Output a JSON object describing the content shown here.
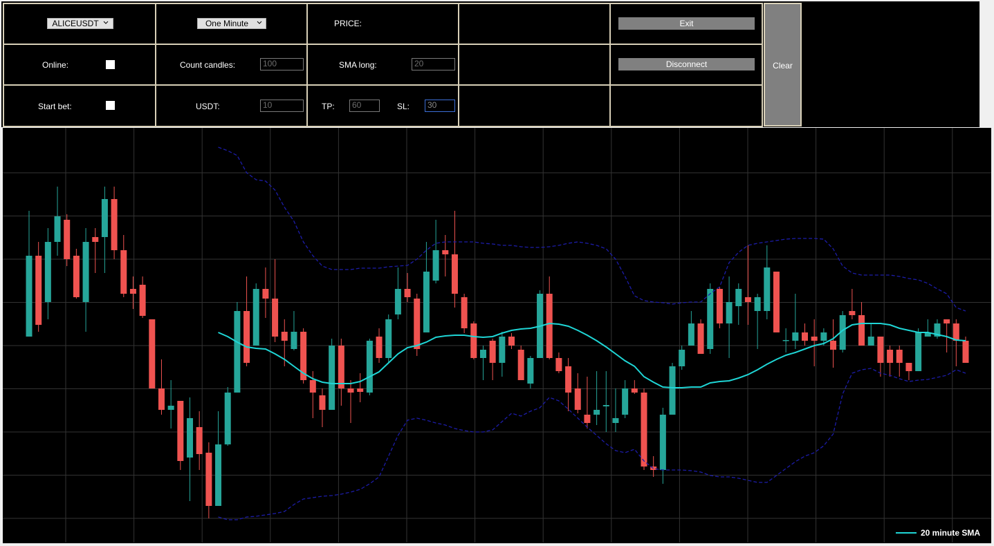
{
  "controls": {
    "symbol": "ALICEUSDT",
    "interval": "One Minute",
    "price_label": "PRICE:",
    "online_label": "Online:",
    "count_candles_label": "Count candles:",
    "count_candles": 100,
    "sma_long_label": "SMA long:",
    "sma_long": 20,
    "start_bet_label": "Start bet:",
    "usdt_label": "USDT:",
    "usdt": 10,
    "tp_label": "TP:",
    "tp": 60,
    "sl_label": "SL:",
    "sl": 30,
    "exit_button": "Exit",
    "disconnect_button": "Disconnect",
    "clear_button": "Clear"
  },
  "chart_data": {
    "type": "candlestick",
    "ylim": [
      0,
      600
    ],
    "grid": true,
    "up_color": "#26a69a",
    "down_color": "#ef5350",
    "legend": "lower right",
    "open": [
      298,
      415,
      348,
      435,
      467,
      415,
      348,
      442,
      442,
      497,
      423,
      367,
      373,
      323,
      223,
      192,
      205,
      123,
      167,
      130,
      53,
      142,
      217,
      335,
      285,
      367,
      353,
      305,
      280,
      305,
      235,
      213,
      192,
      285,
      223,
      223,
      217,
      298,
      267,
      330,
      367,
      353,
      304,
      379,
      423,
      417,
      355,
      317,
      267,
      292,
      260,
      298,
      279,
      230,
      267,
      360,
      267,
      255,
      223,
      185,
      185,
      197,
      173,
      185,
      223,
      217,
      110,
      105,
      185,
      255,
      285,
      317,
      280,
      367,
      317,
      342,
      355,
      335,
      335,
      392,
      292,
      292,
      304,
      298,
      292,
      292,
      279,
      335,
      329,
      285,
      298,
      279,
      279,
      260,
      248,
      298,
      298,
      323,
      317,
      292
    ],
    "high": [
      480,
      435,
      455,
      515,
      475,
      425,
      455,
      455,
      515,
      515,
      445,
      385,
      385,
      323,
      265,
      235,
      205,
      210,
      190,
      145,
      190,
      225,
      348,
      385,
      375,
      398,
      410,
      323,
      335,
      310,
      248,
      223,
      295,
      295,
      235,
      245,
      295,
      310,
      330,
      398,
      390,
      360,
      435,
      467,
      445,
      480,
      360,
      320,
      285,
      295,
      305,
      303,
      285,
      270,
      365,
      385,
      275,
      267,
      245,
      240,
      248,
      248,
      223,
      235,
      235,
      223,
      125,
      195,
      260,
      285,
      335,
      323,
      375,
      370,
      385,
      375,
      430,
      360,
      430,
      392,
      310,
      360,
      317,
      323,
      310,
      323,
      335,
      367,
      348,
      317,
      298,
      285,
      285,
      260,
      310,
      323,
      323,
      323,
      323,
      298
    ],
    "low": [
      298,
      305,
      323,
      415,
      400,
      353,
      305,
      390,
      390,
      410,
      355,
      338,
      325,
      223,
      185,
      165,
      105,
      60,
      105,
      35,
      53,
      140,
      217,
      255,
      285,
      325,
      290,
      255,
      278,
      230,
      180,
      167,
      192,
      198,
      173,
      203,
      213,
      260,
      260,
      323,
      348,
      270,
      304,
      375,
      385,
      340,
      303,
      265,
      235,
      235,
      240,
      280,
      235,
      223,
      267,
      265,
      245,
      190,
      187,
      165,
      170,
      160,
      160,
      180,
      215,
      105,
      95,
      85,
      185,
      250,
      285,
      273,
      273,
      310,
      267,
      315,
      315,
      280,
      323,
      304,
      275,
      280,
      285,
      255,
      285,
      253,
      275,
      323,
      285,
      285,
      240,
      240,
      240,
      235,
      248,
      298,
      295,
      275,
      255,
      260
    ],
    "close": [
      415,
      315,
      435,
      472,
      410,
      355,
      435,
      435,
      497,
      423,
      360,
      360,
      328,
      223,
      192,
      198,
      118,
      180,
      128,
      53,
      142,
      217,
      335,
      260,
      367,
      353,
      298,
      292,
      305,
      235,
      217,
      192,
      285,
      223,
      217,
      218,
      292,
      267,
      323,
      367,
      355,
      280,
      392,
      423,
      417,
      360,
      310,
      267,
      279,
      260,
      298,
      285,
      235,
      267,
      360,
      267,
      248,
      217,
      192,
      173,
      192,
      199,
      180,
      223,
      217,
      110,
      105,
      185,
      255,
      279,
      317,
      273,
      367,
      317,
      348,
      367,
      348,
      355,
      398,
      304,
      293,
      304,
      292,
      292,
      304,
      279,
      329,
      329,
      285,
      298,
      260,
      260,
      260,
      248,
      304,
      304,
      317,
      317,
      292,
      260
    ],
    "series": [
      {
        "name": "20 minute SMA",
        "color": "#1fd6d6",
        "values": [
          null,
          null,
          null,
          null,
          null,
          null,
          null,
          null,
          null,
          null,
          null,
          null,
          null,
          null,
          null,
          null,
          null,
          null,
          null,
          null,
          304,
          298,
          290,
          283,
          281,
          280,
          273,
          265,
          255,
          245,
          237,
          232,
          230,
          230,
          230,
          233,
          240,
          247,
          260,
          273,
          282,
          285,
          290,
          297,
          299,
          300,
          300,
          298,
          297,
          298,
          303,
          307,
          309,
          310,
          313,
          317,
          316,
          313,
          307,
          300,
          292,
          283,
          273,
          263,
          255,
          240,
          232,
          225,
          224,
          224,
          225,
          225,
          231,
          233,
          234,
          238,
          243,
          250,
          258,
          265,
          271,
          275,
          280,
          285,
          288,
          295,
          307,
          315,
          317,
          317,
          317,
          315,
          310,
          307,
          304,
          304,
          301,
          298,
          293,
          292
        ]
      }
    ],
    "bands": [
      {
        "color": "#1c1ca8",
        "style": "dashed",
        "values": [
          null,
          null,
          null,
          null,
          null,
          null,
          null,
          null,
          null,
          null,
          null,
          null,
          null,
          null,
          null,
          null,
          null,
          null,
          null,
          null,
          572,
          567,
          560,
          535,
          525,
          523,
          510,
          485,
          465,
          435,
          415,
          400,
          395,
          395,
          395,
          397,
          397,
          397,
          399,
          400,
          401,
          410,
          423,
          433,
          435,
          435,
          435,
          435,
          433,
          432,
          430,
          430,
          428,
          427,
          427,
          428,
          430,
          433,
          435,
          433,
          430,
          425,
          410,
          385,
          357,
          350,
          348,
          347,
          345,
          347,
          348,
          348,
          360,
          370,
          405,
          420,
          430,
          433,
          435,
          437,
          439,
          440,
          440,
          440,
          439,
          425,
          400,
          390,
          387,
          387,
          387,
          387,
          385,
          382,
          380,
          375,
          367,
          360,
          340,
          335
        ]
      },
      {
        "color": "#1c1ca8",
        "style": "dashed",
        "values": [
          null,
          null,
          null,
          null,
          null,
          null,
          null,
          null,
          null,
          null,
          null,
          null,
          null,
          null,
          null,
          null,
          null,
          null,
          null,
          null,
          37,
          33,
          33,
          37,
          38,
          40,
          42,
          45,
          55,
          63,
          65,
          67,
          68,
          70,
          73,
          77,
          85,
          95,
          125,
          155,
          177,
          180,
          177,
          173,
          170,
          165,
          162,
          160,
          160,
          163,
          175,
          187,
          183,
          190,
          195,
          210,
          205,
          193,
          180,
          167,
          155,
          143,
          133,
          130,
          135,
          118,
          107,
          105,
          105,
          105,
          104,
          102,
          97,
          95,
          95,
          93,
          90,
          87,
          87,
          97,
          107,
          117,
          125,
          130,
          140,
          157,
          215,
          245,
          250,
          252,
          245,
          242,
          237,
          233,
          235,
          236,
          239,
          242,
          250,
          245
        ]
      }
    ]
  }
}
